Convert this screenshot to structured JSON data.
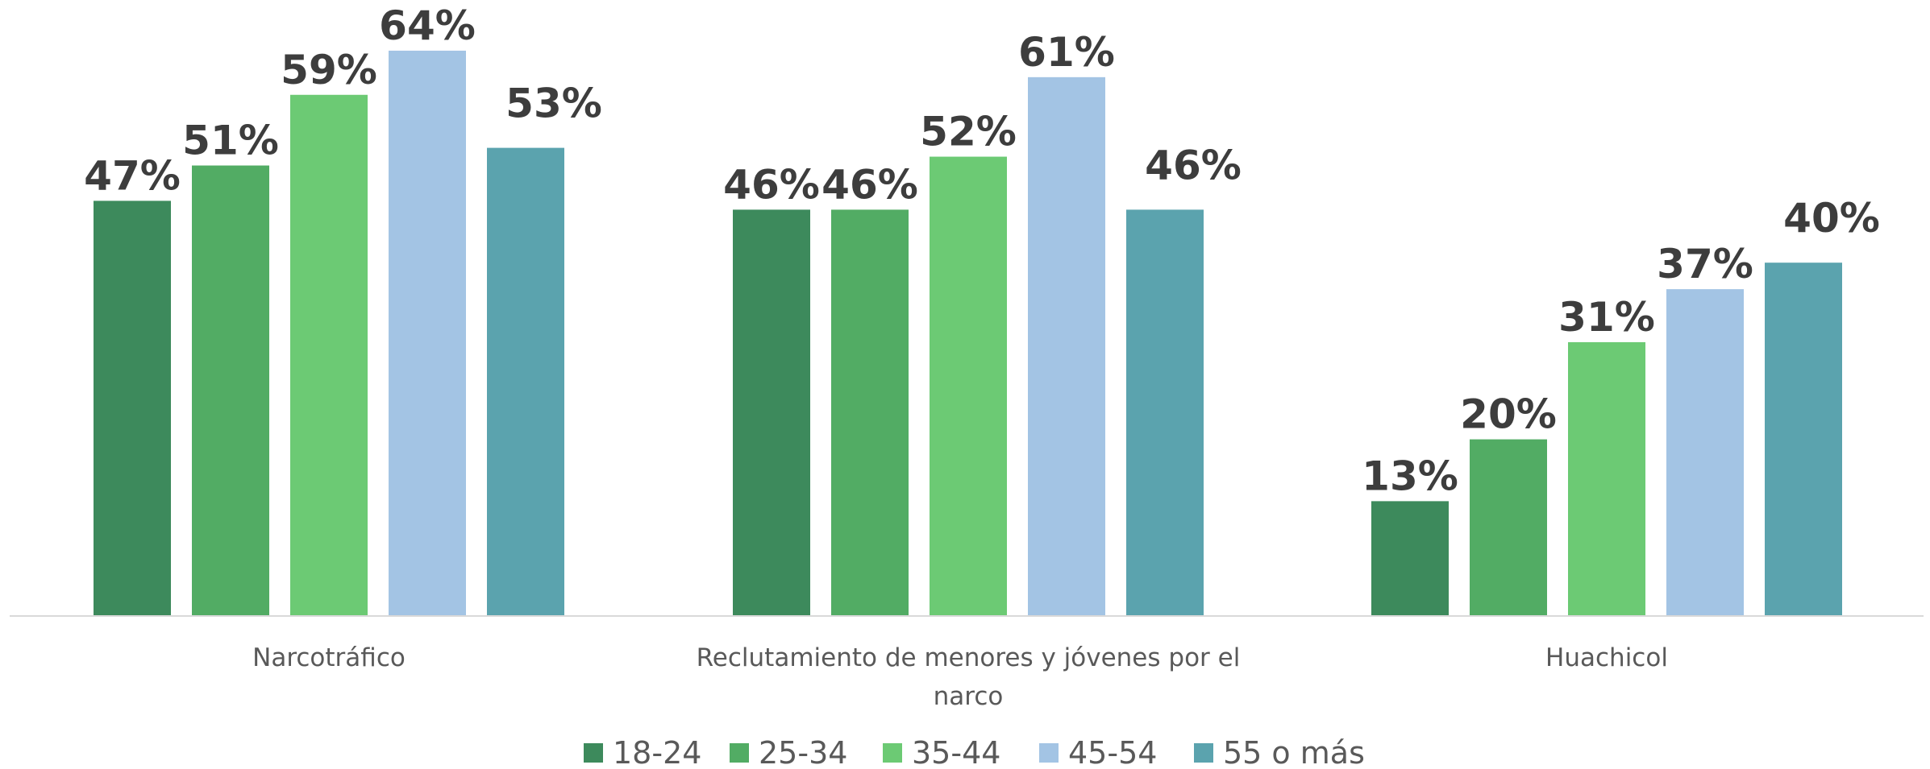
{
  "chart_data": {
    "type": "bar",
    "categories": [
      [
        "Narcotráfico"
      ],
      [
        "Reclutamiento de menores y jóvenes por el",
        "narco"
      ],
      [
        "Huachicol"
      ]
    ],
    "series": [
      {
        "name": "18-24",
        "values": [
          47,
          46,
          13
        ],
        "labels": [
          "47%",
          "46%",
          "13%"
        ],
        "color": "#3d8a5c"
      },
      {
        "name": "25-34",
        "values": [
          51,
          46,
          20
        ],
        "labels": [
          "51%",
          "46%",
          "20%"
        ],
        "color": "#52ac64"
      },
      {
        "name": "35-44",
        "values": [
          59,
          52,
          31
        ],
        "labels": [
          "59%",
          "52%",
          "31%"
        ],
        "color": "#6cca74"
      },
      {
        "name": "45-54",
        "values": [
          64,
          61,
          37
        ],
        "labels": [
          "64%",
          "61%",
          "37%"
        ],
        "color": "#a3c4e4"
      },
      {
        "name": "55 o más",
        "values": [
          53,
          46,
          40
        ],
        "labels": [
          "53%",
          "46%",
          "40%"
        ],
        "color": "#5ba3ae"
      }
    ],
    "ylim": [
      0,
      70
    ],
    "grid": false,
    "legend": "bottom",
    "title": "",
    "xlabel": "",
    "ylabel": ""
  }
}
